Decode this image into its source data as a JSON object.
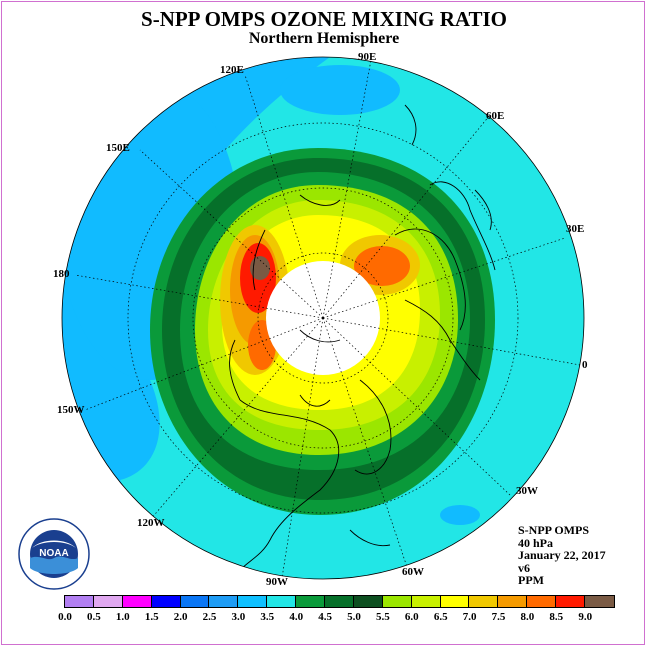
{
  "title": "S-NPP OMPS OZONE MIXING RATIO",
  "subtitle": "Northern Hemisphere",
  "longitude_labels": {
    "e90": "90E",
    "e120": "120E",
    "e60": "60E",
    "e150": "150E",
    "e30": "30E",
    "e180": "180",
    "e0": "0",
    "w150": "150W",
    "w30": "30W",
    "w120": "120W",
    "w60": "60W",
    "w90": "90W"
  },
  "info": {
    "instrument": "S-NPP OMPS",
    "level": "40 hPa",
    "date": "January 22, 2017",
    "version": "v6",
    "units": "PPM"
  },
  "logo": {
    "text": "NOAA",
    "ring_text": "NATIONAL OCEANIC AND ATMOSPHERIC ADMINISTRATION · U.S. DEPARTMENT OF COMMERCE"
  },
  "colorbar": {
    "colors": [
      "#b27ff2",
      "#e0a8f0",
      "#ff00ff",
      "#0000ff",
      "#0a76f5",
      "#1e9cf5",
      "#0fc0ff",
      "#22e6e6",
      "#0a9a3a",
      "#06702a",
      "#0d4f20",
      "#9be600",
      "#c8f000",
      "#ffff00",
      "#f0c800",
      "#f59a00",
      "#ff6a00",
      "#ff1a00",
      "#7a5a44"
    ],
    "ticks": [
      "0.0",
      "0.5",
      "1.0",
      "1.5",
      "2.0",
      "2.5",
      "3.0",
      "3.5",
      "4.0",
      "4.5",
      "5.0",
      "5.5",
      "6.0",
      "6.5",
      "7.0",
      "7.5",
      "8.0",
      "8.5",
      "9.0"
    ]
  }
}
